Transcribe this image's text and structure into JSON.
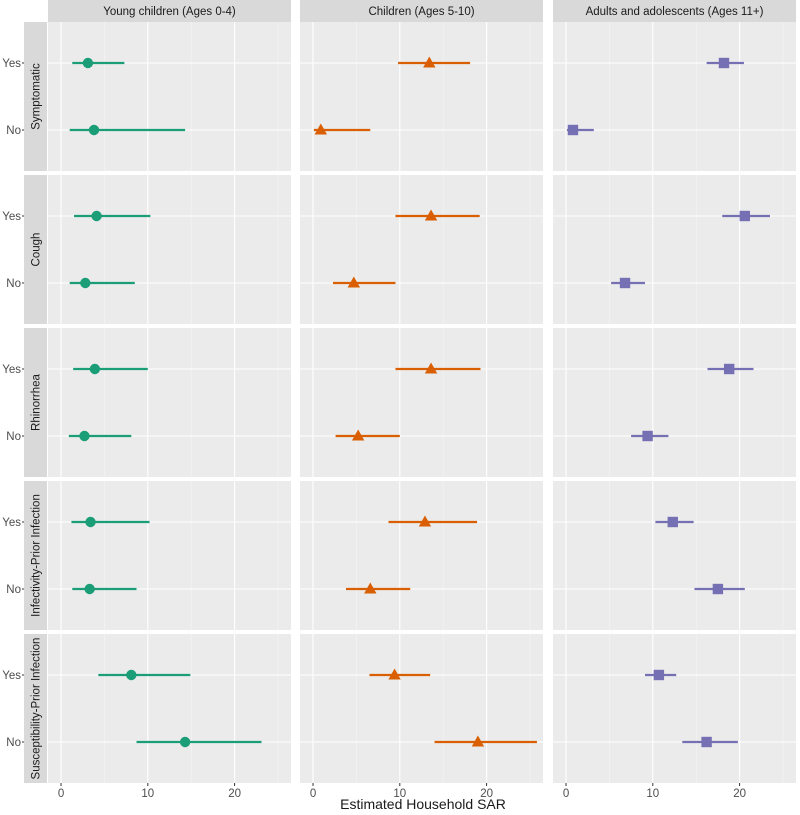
{
  "chart_data": {
    "type": "scatter",
    "subtype": "point-range faceted grid",
    "xlabel": "Estimated Household SAR",
    "xlim": [
      -1.5,
      26.5
    ],
    "xticks": [
      0,
      10,
      20
    ],
    "levels": [
      "Yes",
      "No"
    ],
    "grid": true,
    "colors": {
      "panel_bg": "#ebebeb",
      "strip_bg": "#d9d9d9",
      "grid_major": "#ffffff",
      "text": "#1a1a1a",
      "tick_text": "#4d4d4d"
    },
    "columns": [
      {
        "label": "Young children (Ages 0-4)",
        "color": "#1b9e77",
        "shape": "circle"
      },
      {
        "label": "Children (Ages 5-10)",
        "color": "#d95f02",
        "shape": "triangle"
      },
      {
        "label": "Adults and adolescents (Ages 11+)",
        "color": "#7570b3",
        "shape": "square"
      }
    ],
    "rows": [
      {
        "label": "Symptomatic",
        "cells": [
          {
            "Yes": {
              "est": 3.1,
              "lo": 1.3,
              "hi": 7.3
            },
            "No": {
              "est": 3.8,
              "lo": 1.0,
              "hi": 14.3
            }
          },
          {
            "Yes": {
              "est": 13.4,
              "lo": 9.8,
              "hi": 18.1
            },
            "No": {
              "est": 0.9,
              "lo": 0.1,
              "hi": 6.6
            }
          },
          {
            "Yes": {
              "est": 18.2,
              "lo": 16.2,
              "hi": 20.5
            },
            "No": {
              "est": 0.8,
              "lo": 0.1,
              "hi": 3.2
            }
          }
        ]
      },
      {
        "label": "Cough",
        "cells": [
          {
            "Yes": {
              "est": 4.1,
              "lo": 1.5,
              "hi": 10.3
            },
            "No": {
              "est": 2.8,
              "lo": 1.0,
              "hi": 8.5
            }
          },
          {
            "Yes": {
              "est": 13.6,
              "lo": 9.5,
              "hi": 19.2
            },
            "No": {
              "est": 4.7,
              "lo": 2.3,
              "hi": 9.5
            }
          },
          {
            "Yes": {
              "est": 20.6,
              "lo": 18.0,
              "hi": 23.5
            },
            "No": {
              "est": 6.8,
              "lo": 5.2,
              "hi": 9.1
            }
          }
        ]
      },
      {
        "label": "Rhinorrhea",
        "cells": [
          {
            "Yes": {
              "est": 3.9,
              "lo": 1.4,
              "hi": 10.0
            },
            "No": {
              "est": 2.7,
              "lo": 0.9,
              "hi": 8.1
            }
          },
          {
            "Yes": {
              "est": 13.6,
              "lo": 9.5,
              "hi": 19.3
            },
            "No": {
              "est": 5.2,
              "lo": 2.6,
              "hi": 10.0
            }
          },
          {
            "Yes": {
              "est": 18.8,
              "lo": 16.3,
              "hi": 21.6
            },
            "No": {
              "est": 9.4,
              "lo": 7.5,
              "hi": 11.8
            }
          }
        ]
      },
      {
        "label": "Infectivity-Prior Infection",
        "cells": [
          {
            "Yes": {
              "est": 3.4,
              "lo": 1.2,
              "hi": 10.2
            },
            "No": {
              "est": 3.3,
              "lo": 1.3,
              "hi": 8.7
            }
          },
          {
            "Yes": {
              "est": 12.9,
              "lo": 8.7,
              "hi": 18.9
            },
            "No": {
              "est": 6.6,
              "lo": 3.8,
              "hi": 11.2
            }
          },
          {
            "Yes": {
              "est": 12.3,
              "lo": 10.3,
              "hi": 14.7
            },
            "No": {
              "est": 17.5,
              "lo": 14.8,
              "hi": 20.6
            }
          }
        ]
      },
      {
        "label": "Susceptibility-Prior Infection",
        "cells": [
          {
            "Yes": {
              "est": 8.1,
              "lo": 4.3,
              "hi": 14.9
            },
            "No": {
              "est": 14.3,
              "lo": 8.7,
              "hi": 23.1
            }
          },
          {
            "Yes": {
              "est": 9.4,
              "lo": 6.5,
              "hi": 13.5
            },
            "No": {
              "est": 19.0,
              "lo": 14.0,
              "hi": 25.8
            }
          },
          {
            "Yes": {
              "est": 10.7,
              "lo": 9.1,
              "hi": 12.7
            },
            "No": {
              "est": 16.2,
              "lo": 13.4,
              "hi": 19.8
            }
          }
        ]
      }
    ]
  }
}
